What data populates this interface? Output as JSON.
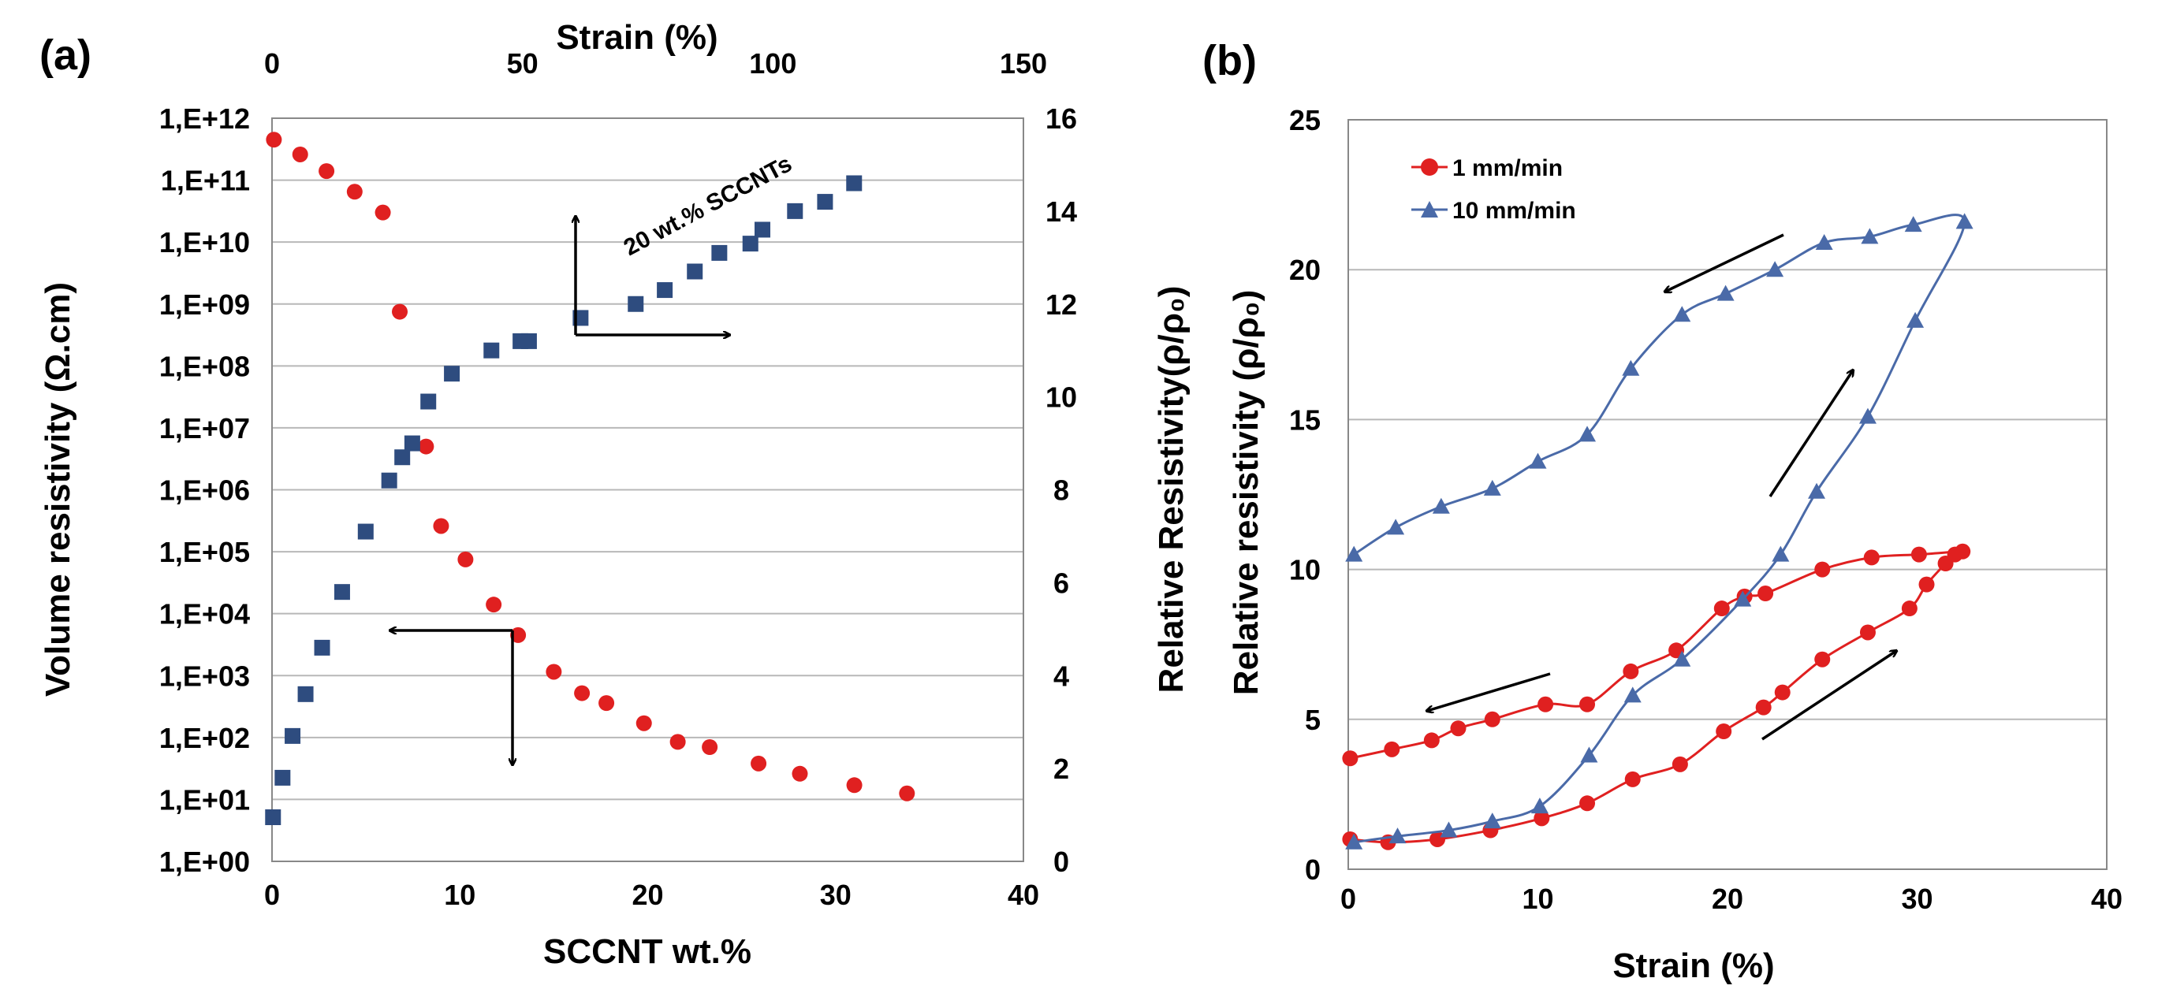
{
  "figure": {
    "panel_a_label": "(a)",
    "panel_b_label": "(b)",
    "arrow_color": "#000000"
  },
  "chart_data": [
    {
      "type": "scatter",
      "panel": "(a)",
      "title": "",
      "xlabel": "SCCNT wt.%",
      "x_top_label": "Strain (%)",
      "ylabel_left": "Volume resistivity (Ω.cm)",
      "ylabel_right": "Relative Resistivity(ρ/ρ₀)",
      "xlim": [
        0,
        40
      ],
      "x_ticks": [
        "0",
        "10",
        "20",
        "30",
        "40"
      ],
      "x_top_lim": [
        0,
        150
      ],
      "x_top_ticks": [
        "0",
        "50",
        "100",
        "150"
      ],
      "y_left_scale": "log",
      "y_left_lim_exp": [
        0,
        12
      ],
      "y_left_ticks": [
        "1,E+00",
        "1,E+01",
        "1,E+02",
        "1,E+03",
        "1,E+04",
        "1,E+05",
        "1,E+06",
        "1,E+07",
        "1,E+08",
        "1,E+09",
        "1,E+10",
        "1,E+11",
        "1,E+12"
      ],
      "y_right_lim": [
        0,
        16
      ],
      "y_right_ticks": [
        "0",
        "2",
        "4",
        "6",
        "8",
        "10",
        "12",
        "14",
        "16"
      ],
      "grid": "horizontal",
      "annotation": "20 wt.% SCCNTs",
      "series": [
        {
          "name": "Volume resistivity vs SCCNT wt.%",
          "axis": "left-bottom",
          "marker": "circle",
          "color": "#e02020",
          "x": [
            0.1,
            1.5,
            2.9,
            4.4,
            5.9,
            6.8,
            8.2,
            9.0,
            10.3,
            11.8,
            13.1,
            15.0,
            16.5,
            17.8,
            19.8,
            21.6,
            23.3,
            25.9,
            28.1,
            31.0,
            33.8
          ],
          "y": [
            450000000000.0,
            260000000000.0,
            140000000000.0,
            65000000000.0,
            30000000000.0,
            750000000.0,
            5000000.0,
            260000.0,
            75000.0,
            14000.0,
            4500.0,
            1150.0,
            520.0,
            360.0,
            170.0,
            85.0,
            70.0,
            38.0,
            26.0,
            17.0,
            12.5
          ]
        },
        {
          "name": "Relative resistivity vs strain (20 wt.% SCCNTs)",
          "axis": "right-top",
          "marker": "square",
          "color": "#2e4c7f",
          "x": [
            0.2,
            2.1,
            4.1,
            6.7,
            10.0,
            14.0,
            18.7,
            23.4,
            26.0,
            28.0,
            31.2,
            35.9,
            43.8,
            49.6,
            51.3,
            61.6,
            72.6,
            78.4,
            84.4,
            89.3,
            95.5,
            97.9,
            104.4,
            110.4,
            116.2
          ],
          "y": [
            0.95,
            1.8,
            2.7,
            3.6,
            4.6,
            5.8,
            7.1,
            8.2,
            8.7,
            9.0,
            9.9,
            10.5,
            11.0,
            11.2,
            11.2,
            11.7,
            12.0,
            12.3,
            12.7,
            13.1,
            13.3,
            13.6,
            14.0,
            14.2,
            14.6
          ]
        }
      ]
    },
    {
      "type": "line",
      "panel": "(b)",
      "title": "",
      "xlabel": "Strain (%)",
      "ylabel": "Relative resistivity (ρ/ρ₀)",
      "xlim": [
        0,
        40
      ],
      "x_ticks": [
        "0",
        "10",
        "20",
        "30",
        "40"
      ],
      "ylim": [
        0,
        25
      ],
      "y_ticks": [
        "0",
        "5",
        "10",
        "15",
        "20",
        "25"
      ],
      "grid": "horizontal",
      "legend_position": "top-left",
      "series": [
        {
          "name": "1 mm/min",
          "marker": "circle",
          "color": "#e02020",
          "x": [
            0.1,
            2.1,
            4.7,
            7.5,
            10.2,
            12.6,
            15.0,
            17.5,
            19.8,
            21.9,
            22.9,
            25.0,
            27.4,
            29.6,
            30.5,
            31.5,
            32.0,
            32.4,
            30.1,
            27.6,
            25.0,
            22.0,
            20.9,
            19.7,
            17.3,
            14.9,
            12.6,
            10.4,
            7.6,
            5.8,
            4.4,
            2.3,
            0.1
          ],
          "y": [
            1.0,
            0.9,
            1.0,
            1.3,
            1.7,
            2.2,
            3.0,
            3.5,
            4.6,
            5.4,
            5.9,
            7.0,
            7.9,
            8.7,
            9.5,
            10.2,
            10.5,
            10.6,
            10.5,
            10.4,
            10.0,
            9.2,
            9.1,
            8.7,
            7.3,
            6.6,
            5.5,
            5.5,
            5.0,
            4.7,
            4.3,
            4.0,
            3.7
          ]
        },
        {
          "name": "10 mm/min",
          "marker": "triangle",
          "color": "#4a6aa8",
          "x": [
            0.3,
            2.6,
            5.3,
            7.6,
            10.1,
            12.7,
            15.0,
            17.6,
            20.8,
            22.8,
            24.7,
            27.4,
            29.9,
            32.5,
            29.8,
            27.5,
            25.1,
            22.5,
            19.9,
            17.6,
            14.9,
            12.6,
            10.0,
            7.6,
            4.9,
            2.5,
            0.3
          ],
          "y": [
            0.9,
            1.1,
            1.3,
            1.6,
            2.1,
            3.8,
            5.8,
            7.0,
            9.0,
            10.5,
            12.6,
            15.1,
            18.3,
            21.6,
            21.5,
            21.1,
            20.9,
            20.0,
            19.2,
            18.5,
            16.7,
            14.5,
            13.6,
            12.7,
            12.1,
            11.4,
            10.5
          ]
        }
      ]
    }
  ]
}
